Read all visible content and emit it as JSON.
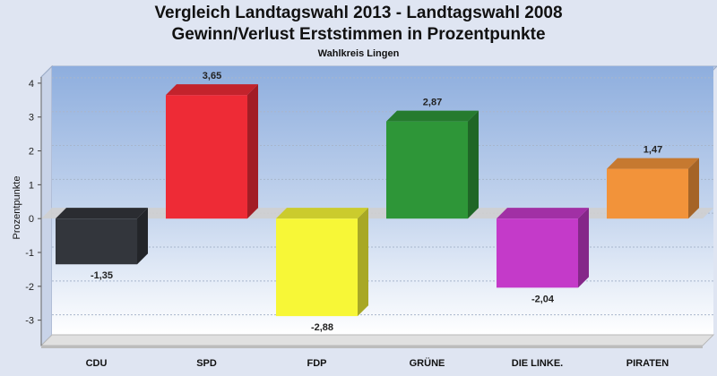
{
  "chart_data": {
    "type": "bar",
    "title_line1": "Vergleich Landtagswahl 2013 - Landtagswahl 2008",
    "title_line2": "Gewinn/Verlust Erststimmen in Prozentpunkte",
    "subtitle": "Wahlkreis Lingen",
    "ylabel": "Prozentpunkte",
    "xlabel": "",
    "ylim": [
      -3.75,
      4.5
    ],
    "yticks": [
      -3,
      -2,
      -1,
      0,
      1,
      2,
      3,
      4
    ],
    "categories": [
      "CDU",
      "SPD",
      "FDP",
      "GRÜNE",
      "DIE LINKE.",
      "PIRATEN"
    ],
    "values": [
      -1.35,
      3.65,
      -2.88,
      2.87,
      -2.04,
      1.47
    ],
    "value_labels": [
      "-1,35",
      "3,65",
      "-2,88",
      "2,87",
      "-2,04",
      "1,47"
    ],
    "colors": [
      "#33363c",
      "#ee2b36",
      "#f7f737",
      "#2e9638",
      "#c43ac9",
      "#f2933a"
    ],
    "grid": true,
    "legend": "none"
  }
}
